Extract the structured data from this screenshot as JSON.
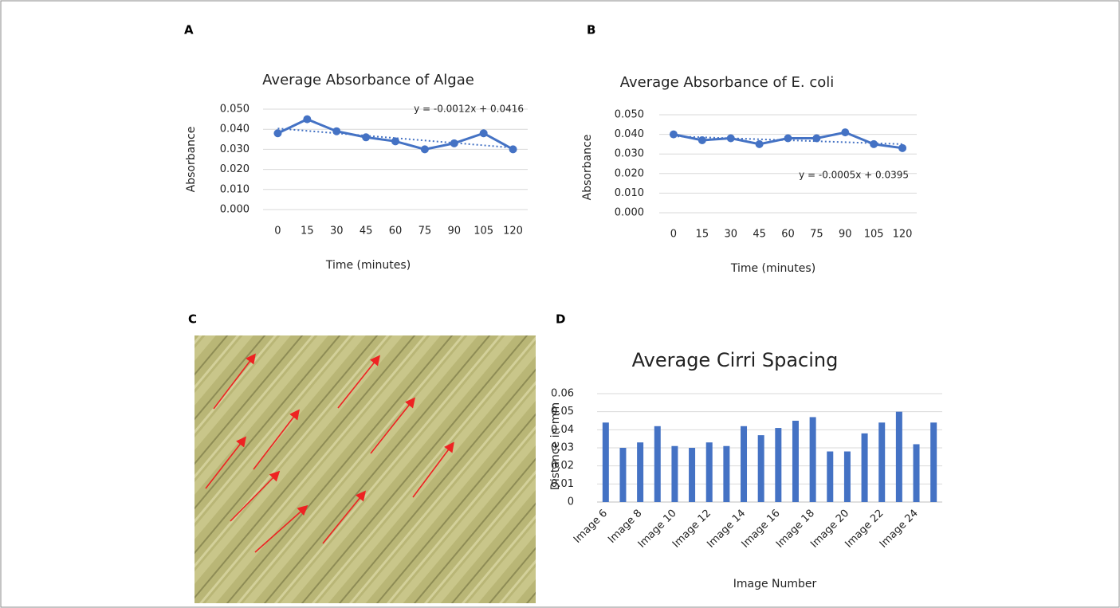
{
  "image_panel": {
    "label": "C"
  },
  "chart_data": [
    {
      "type": "line",
      "panel": "A",
      "title": "Average Absorbance of Algae",
      "x_label": "Time (minutes)",
      "y_label": "Absorbance",
      "categories": [
        "0",
        "15",
        "30",
        "45",
        "60",
        "75",
        "90",
        "105",
        "120"
      ],
      "values": [
        0.038,
        0.045,
        0.039,
        0.036,
        0.034,
        0.03,
        0.033,
        0.038,
        0.03
      ],
      "color": "#4472c4",
      "ylim": [
        0,
        0.05
      ],
      "yticks": [
        {
          "value": 0,
          "label": "0.000"
        },
        {
          "value": 0.01,
          "label": "0.010"
        },
        {
          "value": 0.02,
          "label": "0.020"
        },
        {
          "value": 0.03,
          "label": "0.030"
        },
        {
          "value": 0.04,
          "label": "0.040"
        },
        {
          "value": 0.05,
          "label": "0.050"
        }
      ],
      "grid": true,
      "trendline": {
        "label": "y = -0.0012x + 0.0416",
        "slope": -0.0012,
        "intercept": 0.0416
      }
    },
    {
      "type": "line",
      "panel": "B",
      "title": "Average Absorbance of E. coli",
      "x_label": "Time (minutes)",
      "y_label": "Absorbance",
      "categories": [
        "0",
        "15",
        "30",
        "45",
        "60",
        "75",
        "90",
        "105",
        "120"
      ],
      "values": [
        0.04,
        0.037,
        0.038,
        0.035,
        0.038,
        0.038,
        0.041,
        0.035,
        0.033
      ],
      "color": "#4472c4",
      "ylim": [
        0,
        0.05
      ],
      "yticks": [
        {
          "value": 0,
          "label": "0.000"
        },
        {
          "value": 0.01,
          "label": "0.010"
        },
        {
          "value": 0.02,
          "label": "0.020"
        },
        {
          "value": 0.03,
          "label": "0.030"
        },
        {
          "value": 0.04,
          "label": "0.040"
        },
        {
          "value": 0.05,
          "label": "0.050"
        }
      ],
      "grid": true,
      "trendline": {
        "label": "y = -0.0005x + 0.0395",
        "slope": -0.0005,
        "intercept": 0.0395
      }
    },
    {
      "type": "bar",
      "panel": "D",
      "title": "Average Cirri Spacing",
      "x_label": "Image Number",
      "y_label": "Distance in mm",
      "categories": [
        "Image 6",
        null,
        "Image 8",
        null,
        "Image 10",
        null,
        "Image 12",
        null,
        "Image 14",
        null,
        "Image 16",
        null,
        "Image 18",
        null,
        "Image 20",
        null,
        "Image 22",
        null,
        "Image 24",
        null
      ],
      "values": [
        0.044,
        0.03,
        0.033,
        0.042,
        0.031,
        0.03,
        0.033,
        0.031,
        0.042,
        0.037,
        0.041,
        0.045,
        0.047,
        0.028,
        0.028,
        0.038,
        0.044,
        0.05,
        0.032,
        0.044
      ],
      "color": "#4472c4",
      "ylim": [
        0,
        0.06
      ],
      "yticks": [
        0,
        0.01,
        0.02,
        0.03,
        0.04,
        0.05,
        0.06
      ],
      "grid": true
    }
  ]
}
